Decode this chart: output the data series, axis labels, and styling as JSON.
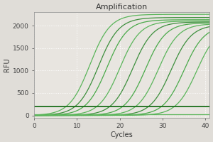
{
  "title": "Amplification",
  "xlabel": "Cycles",
  "ylabel": "RFU",
  "xlim": [
    0,
    41
  ],
  "ylim": [
    -50,
    2300
  ],
  "yticks": [
    0,
    500,
    1000,
    1500,
    2000
  ],
  "xticks": [
    0,
    10,
    20,
    30,
    40
  ],
  "fig_bg_color": "#e0ddd8",
  "plot_bg_color": "#e8e5e0",
  "sigmoid_curves": [
    {
      "midpoint": 13,
      "max_val": 2250,
      "steepness": 0.42,
      "color": "#5ab55a",
      "lw": 0.9
    },
    {
      "midpoint": 15,
      "max_val": 2180,
      "steepness": 0.42,
      "color": "#3d8f3d",
      "lw": 0.9
    },
    {
      "midpoint": 17,
      "max_val": 2130,
      "steepness": 0.42,
      "color": "#4aaa4a",
      "lw": 0.9
    },
    {
      "midpoint": 20,
      "max_val": 2100,
      "steepness": 0.42,
      "color": "#5ab55a",
      "lw": 0.9
    },
    {
      "midpoint": 23,
      "max_val": 2080,
      "steepness": 0.42,
      "color": "#3d8f3d",
      "lw": 0.9
    },
    {
      "midpoint": 26,
      "max_val": 2060,
      "steepness": 0.42,
      "color": "#4aaa4a",
      "lw": 0.9
    },
    {
      "midpoint": 29,
      "max_val": 2040,
      "steepness": 0.42,
      "color": "#5ab55a",
      "lw": 0.9
    },
    {
      "midpoint": 32,
      "max_val": 2020,
      "steepness": 0.42,
      "color": "#3d8f3d",
      "lw": 0.9
    },
    {
      "midpoint": 35,
      "max_val": 2000,
      "steepness": 0.42,
      "color": "#4aaa4a",
      "lw": 0.9
    },
    {
      "midpoint": 38,
      "max_val": 1980,
      "steepness": 0.42,
      "color": "#5ab55a",
      "lw": 0.9
    }
  ],
  "flat_lines": [
    {
      "y": 200,
      "color": "#1a6e1a",
      "lw": 1.3
    },
    {
      "y": 30,
      "color": "#5ab55a",
      "lw": 0.9
    }
  ],
  "grid_color": "#ffffff",
  "title_fontsize": 8,
  "axis_label_fontsize": 7,
  "tick_fontsize": 6.5
}
